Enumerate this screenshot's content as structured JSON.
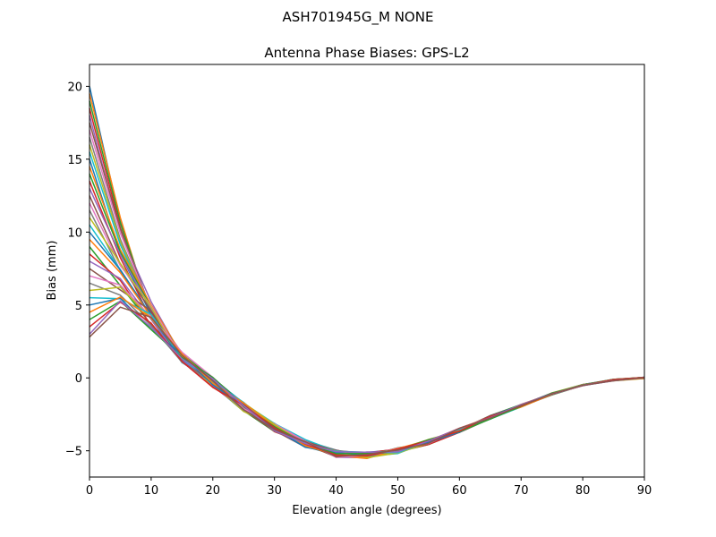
{
  "chart_data": {
    "type": "line",
    "suptitle": "ASH701945G_M    NONE",
    "title": "Antenna Phase Biases: GPS-L2",
    "xlabel": "Elevation angle (degrees)",
    "ylabel": "Bias (mm)",
    "xlim": [
      0,
      90
    ],
    "ylim": [
      -6.8,
      21.5
    ],
    "xticks": [
      0,
      10,
      20,
      30,
      40,
      50,
      60,
      70,
      80,
      90
    ],
    "yticks": [
      -5,
      0,
      5,
      10,
      15,
      20
    ],
    "ytick_labels": [
      "−5",
      "0",
      "5",
      "10",
      "15",
      "20"
    ],
    "x": [
      0,
      5,
      10,
      15,
      20,
      25,
      30,
      35,
      40,
      45,
      50,
      55,
      60,
      65,
      70,
      75,
      80,
      85,
      90
    ],
    "shared_tail": {
      "x": [
        15,
        20,
        25,
        30,
        35,
        40,
        45,
        50,
        55,
        60,
        65,
        70,
        75,
        80,
        85,
        90
      ],
      "values": [
        1.4,
        -0.3,
        -2.0,
        -3.4,
        -4.5,
        -5.2,
        -5.3,
        -5.0,
        -4.4,
        -3.6,
        -2.7,
        -1.9,
        -1.1,
        -0.5,
        -0.15,
        0
      ]
    },
    "series_start_values_at_0deg": [
      20.0,
      19.5,
      19.0,
      18.5,
      18.0,
      17.5,
      17.0,
      16.5,
      16.0,
      15.5,
      15.0,
      14.5,
      14.0,
      13.5,
      13.0,
      12.5,
      12.0,
      11.5,
      11.0,
      10.5,
      10.0,
      9.5,
      9.0,
      8.5,
      8.0,
      7.5,
      7.0,
      6.5,
      6.0,
      5.5,
      5.0,
      4.5,
      4.0,
      3.5,
      3.0,
      2.8
    ],
    "series_values_at_5deg_range": [
      5.2,
      11.0
    ],
    "series_values_at_10deg_range": [
      3.2,
      5.4
    ],
    "series_count": 36,
    "colors": [
      "#1f77b4",
      "#ff7f0e",
      "#2ca02c",
      "#d62728",
      "#9467bd",
      "#8c564b",
      "#e377c2",
      "#7f7f7f",
      "#bcbd22",
      "#17becf"
    ],
    "grid": false,
    "legend": "none"
  }
}
